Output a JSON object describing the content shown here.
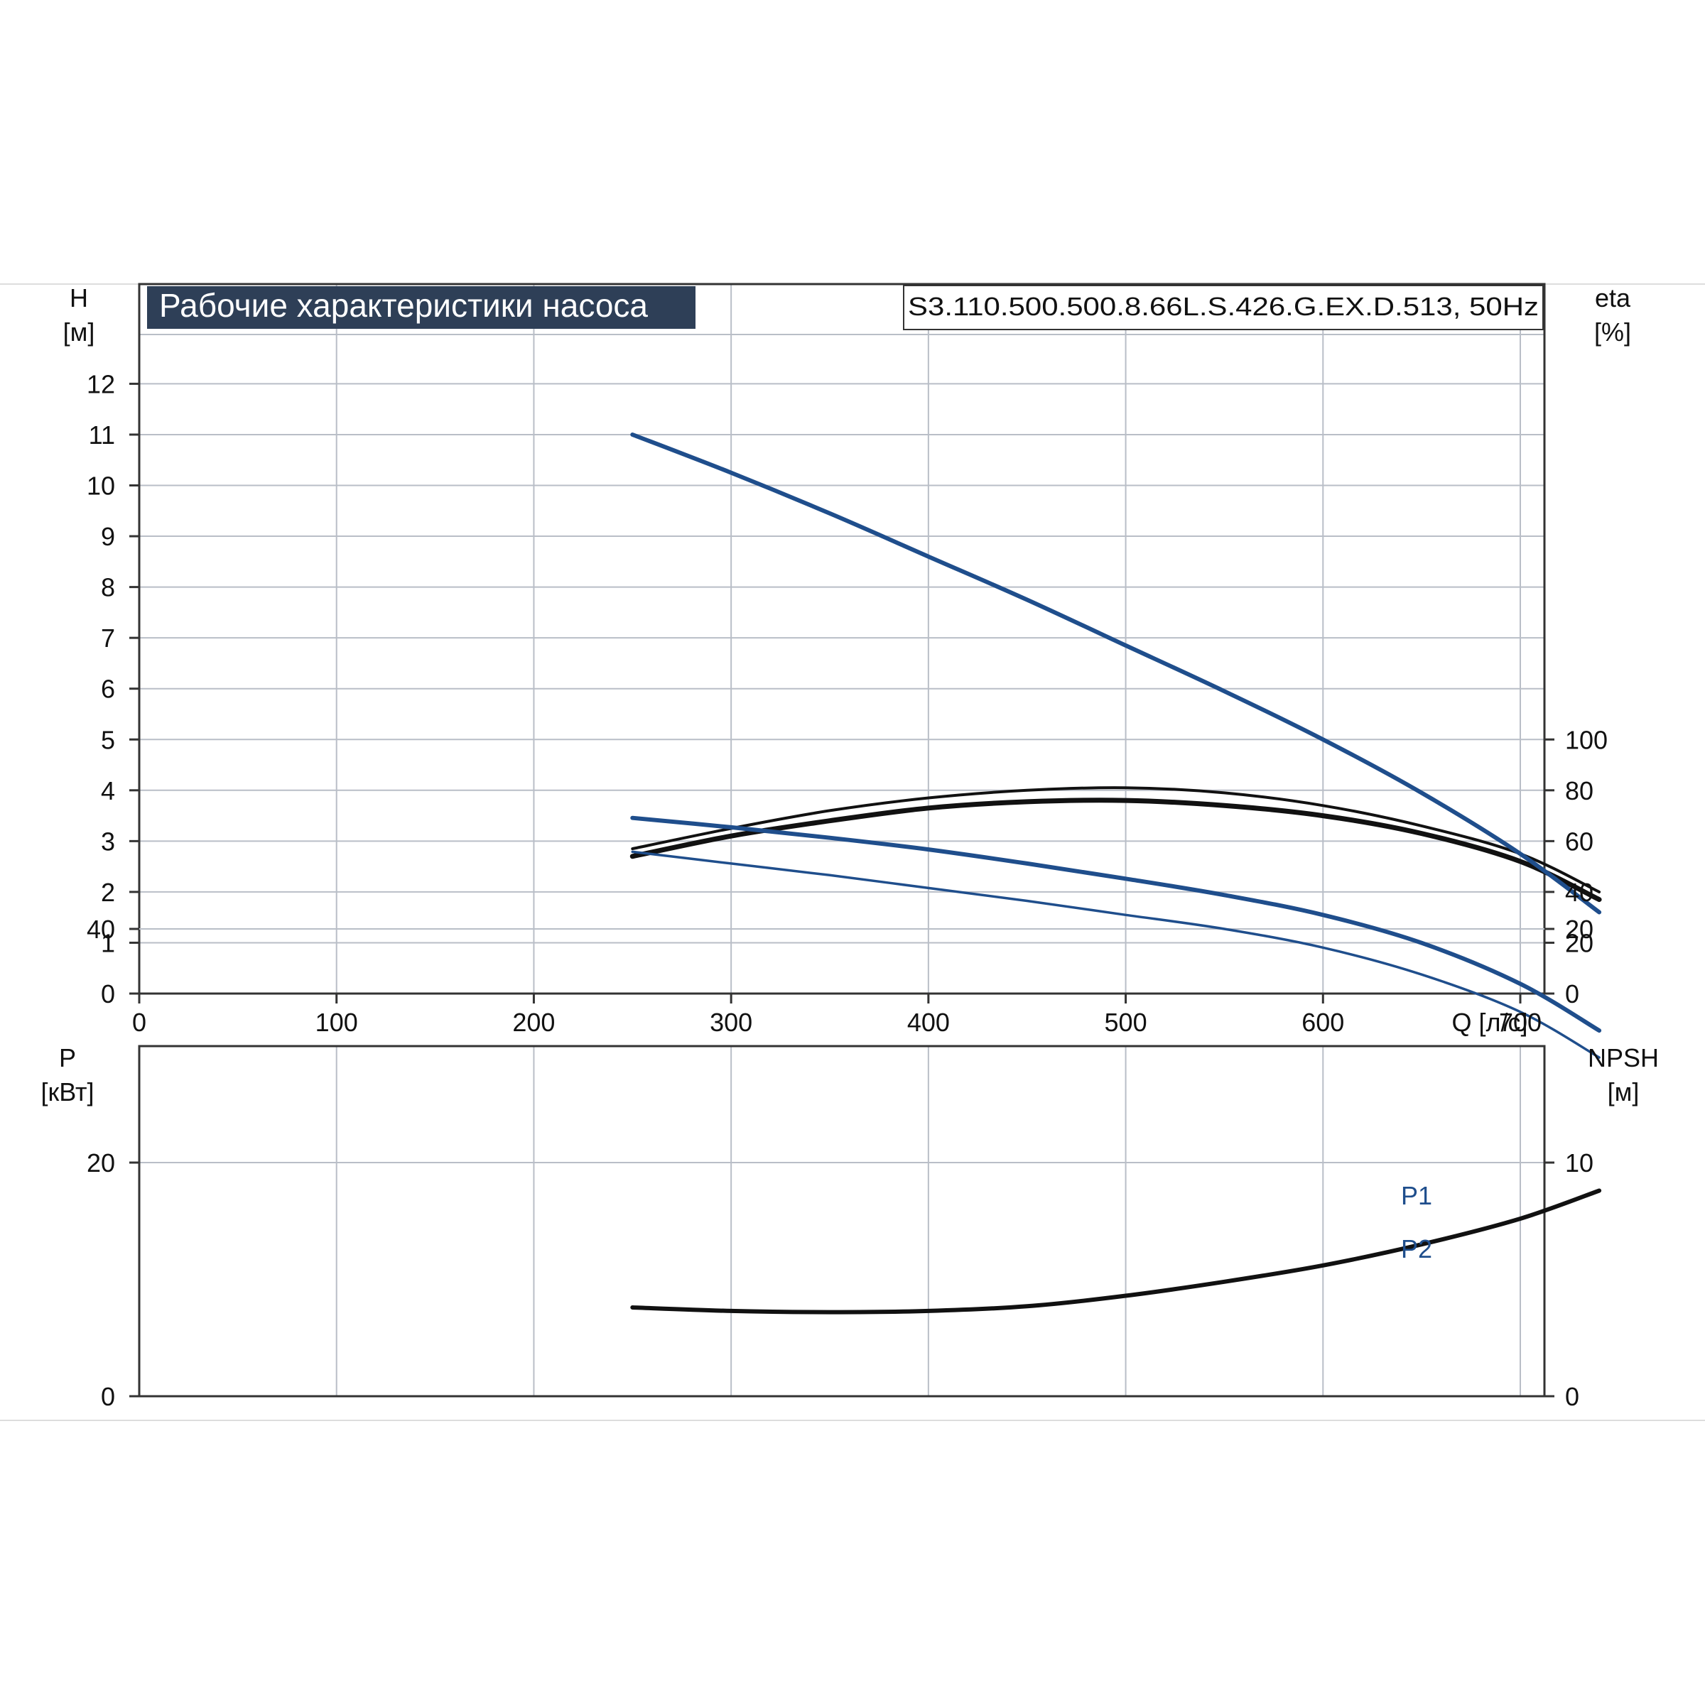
{
  "chart_data": [
    {
      "type": "line",
      "title": "Рабочие характеристики насоса",
      "model_label": "S3.110.500.500.8.66L.S.426.G.EX.D.513, 50Hz",
      "colors": {
        "head": "#1f4e8c",
        "efficiency": "#111111",
        "title_bg": "#2e3f57"
      },
      "x_axis": {
        "label": "Q [л/с]",
        "lim": [
          0,
          800
        ],
        "ticks": [
          0,
          100,
          200,
          300,
          400,
          500,
          600,
          700
        ],
        "tick_labels": [
          "0",
          "100",
          "200",
          "300",
          "400",
          "500",
          "600",
          "700"
        ]
      },
      "y_left": {
        "label_line1": "H",
        "label_line2": "[м]",
        "lim": [
          0,
          13
        ],
        "ticks": [
          0,
          1,
          2,
          3,
          4,
          5,
          6,
          7,
          8,
          9,
          10,
          11,
          12
        ],
        "tick_labels": [
          "0",
          "1",
          "2",
          "3",
          "4",
          "5",
          "6",
          "7",
          "8",
          "9",
          "10",
          "11",
          "12"
        ]
      },
      "y_right": {
        "label_line1": "eta",
        "label_line2": "[%]",
        "lim": [
          0,
          100
        ],
        "ticks": [
          0,
          20,
          40,
          60,
          80,
          100
        ],
        "tick_labels": [
          "0",
          "20",
          "40",
          "60",
          "80",
          "100"
        ]
      },
      "grid": true,
      "series": [
        {
          "axis": "left",
          "style": "head",
          "x": [
            250,
            300,
            350,
            400,
            450,
            500,
            550,
            600,
            650,
            700,
            740
          ],
          "y": [
            11.0,
            10.25,
            9.45,
            8.6,
            7.75,
            6.85,
            5.95,
            5.0,
            3.95,
            2.75,
            1.6
          ]
        },
        {
          "axis": "right",
          "style": "eff-thin",
          "x": [
            250,
            300,
            350,
            400,
            450,
            500,
            550,
            600,
            650,
            700,
            740
          ],
          "y": [
            57,
            65,
            72,
            77,
            80,
            81,
            79,
            74,
            66,
            55,
            40
          ]
        },
        {
          "axis": "right",
          "style": "eff-thick",
          "x": [
            250,
            300,
            350,
            400,
            450,
            500,
            550,
            600,
            650,
            700,
            740
          ],
          "y": [
            54,
            62,
            68,
            73,
            75.5,
            76,
            74,
            70,
            63,
            52,
            37
          ]
        }
      ]
    },
    {
      "type": "line",
      "x_axis": {
        "lim": [
          0,
          800
        ],
        "ticks": [
          0,
          100,
          200,
          300,
          400,
          500,
          600,
          700
        ]
      },
      "y_left": {
        "label_line1": "P",
        "label_line2": "[кВт]",
        "lim": [
          0,
          50
        ],
        "ticks": [
          0,
          20,
          40
        ],
        "tick_labels": [
          "0",
          "20",
          "40"
        ]
      },
      "y_right": {
        "label_line1": "NPSH",
        "label_line2": "[м]",
        "lim": [
          0,
          25
        ],
        "ticks": [
          0,
          10,
          20
        ],
        "tick_labels": [
          "0",
          "10",
          "20"
        ]
      },
      "grid": true,
      "series": [
        {
          "name": "P1",
          "axis": "left",
          "style": "p1",
          "x": [
            250,
            300,
            350,
            400,
            450,
            500,
            550,
            600,
            650,
            700,
            740
          ],
          "y": [
            49.5,
            48.7,
            47.8,
            46.8,
            45.6,
            44.3,
            42.9,
            41.2,
            38.8,
            35.3,
            31.3
          ]
        },
        {
          "name": "P2",
          "axis": "left",
          "style": "p2",
          "x": [
            250,
            300,
            350,
            400,
            450,
            500,
            550,
            600,
            650,
            700,
            740
          ],
          "y": [
            46.6,
            45.6,
            44.6,
            43.5,
            42.4,
            41.2,
            40.0,
            38.4,
            36.1,
            32.9,
            29.0
          ]
        },
        {
          "axis": "right",
          "style": "npsh",
          "x": [
            250,
            300,
            350,
            400,
            450,
            500,
            550,
            600,
            650,
            700,
            740
          ],
          "y": [
            3.8,
            3.65,
            3.6,
            3.65,
            3.85,
            4.3,
            4.9,
            5.6,
            6.5,
            7.6,
            8.8
          ]
        }
      ]
    }
  ]
}
